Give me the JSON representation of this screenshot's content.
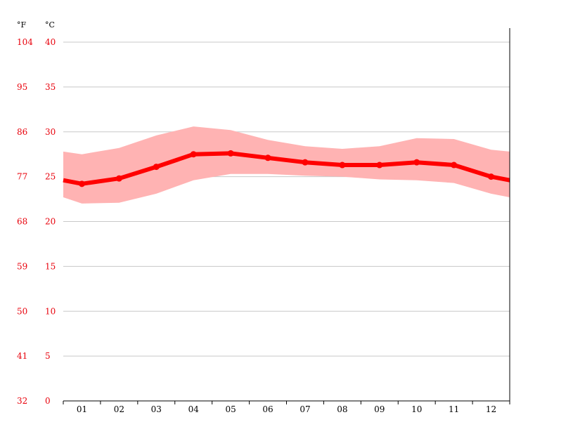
{
  "chart_data": {
    "type": "line",
    "units": {
      "fahrenheit": "°F",
      "celsius": "°C"
    },
    "categories": [
      "01",
      "02",
      "03",
      "04",
      "05",
      "06",
      "07",
      "08",
      "09",
      "10",
      "11",
      "12"
    ],
    "y_ticks_c": [
      0,
      5,
      10,
      15,
      20,
      25,
      30,
      35,
      40
    ],
    "y_ticks_f": [
      32,
      41,
      50,
      59,
      68,
      77,
      86,
      95,
      104
    ],
    "ylim": [
      0,
      40
    ],
    "grid": true,
    "series": [
      {
        "role": "mean",
        "values": [
          24.2,
          24.8,
          26.1,
          27.5,
          27.6,
          27.1,
          26.6,
          26.3,
          26.3,
          26.6,
          26.3,
          25.0
        ]
      },
      {
        "role": "band_high",
        "values": [
          27.5,
          28.2,
          29.6,
          30.6,
          30.2,
          29.1,
          28.4,
          28.1,
          28.4,
          29.3,
          29.2,
          28.0
        ]
      },
      {
        "role": "band_low",
        "values": [
          22.0,
          22.1,
          23.1,
          24.6,
          25.3,
          25.3,
          25.1,
          25.0,
          24.7,
          24.6,
          24.3,
          23.1
        ]
      }
    ],
    "edge_values": {
      "mean": [
        24.6,
        24.6
      ],
      "band_high": [
        27.8,
        27.8
      ],
      "band_low": [
        22.7,
        22.7
      ]
    },
    "colors": {
      "line": "#ff0000",
      "band": "#ffb3b3",
      "grid": "#c8c8c8",
      "axis": "#000000",
      "labels": "#e8000b"
    }
  }
}
